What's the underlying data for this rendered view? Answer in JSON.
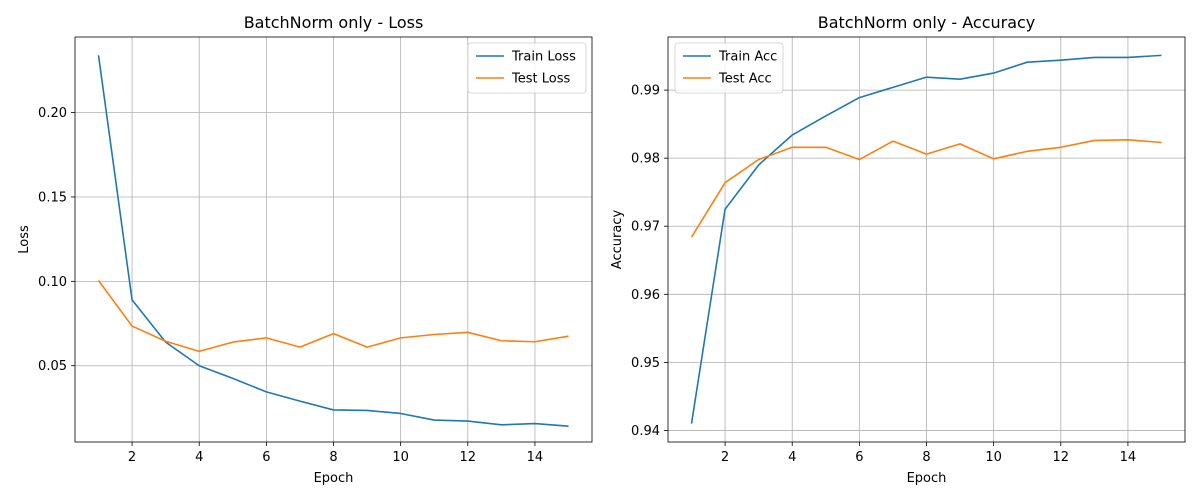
{
  "chart_data": [
    {
      "type": "line",
      "title": "BatchNorm only - Loss",
      "xlabel": "Epoch",
      "ylabel": "Loss",
      "xlim": [
        0.3,
        15.7
      ],
      "ylim": [
        0.0048,
        0.2448
      ],
      "xticks": [
        2,
        4,
        6,
        8,
        10,
        12,
        14
      ],
      "yticks": [
        0.05,
        0.1,
        0.15,
        0.2
      ],
      "ytick_labels": [
        "0.05",
        "0.10",
        "0.15",
        "0.20"
      ],
      "grid": true,
      "legend_position": "upper right",
      "x": [
        1,
        2,
        3,
        4,
        5,
        6,
        7,
        8,
        9,
        10,
        11,
        12,
        13,
        14,
        15
      ],
      "series": [
        {
          "name": "Train Loss",
          "color": "#1f77b4",
          "values": [
            0.234,
            0.089,
            0.064,
            0.05,
            0.0425,
            0.0345,
            0.029,
            0.0238,
            0.0235,
            0.0217,
            0.0178,
            0.0172,
            0.015,
            0.0157,
            0.0142
          ]
        },
        {
          "name": "Test Loss",
          "color": "#ff7f0e",
          "values": [
            0.1005,
            0.0735,
            0.0645,
            0.0585,
            0.064,
            0.0665,
            0.061,
            0.069,
            0.061,
            0.0665,
            0.0685,
            0.0698,
            0.0648,
            0.0642,
            0.0675
          ]
        }
      ]
    },
    {
      "type": "line",
      "title": "BatchNorm only - Accuracy",
      "xlabel": "Epoch",
      "ylabel": "Accuracy",
      "xlim": [
        0.3,
        15.7
      ],
      "ylim": [
        0.9383,
        0.9978
      ],
      "xticks": [
        2,
        4,
        6,
        8,
        10,
        12,
        14
      ],
      "yticks": [
        0.94,
        0.95,
        0.96,
        0.97,
        0.98,
        0.99
      ],
      "ytick_labels": [
        "0.94",
        "0.95",
        "0.96",
        "0.97",
        "0.98",
        "0.99"
      ],
      "grid": true,
      "legend_position": "upper left",
      "x": [
        1,
        2,
        3,
        4,
        5,
        6,
        7,
        8,
        9,
        10,
        11,
        12,
        13,
        14,
        15
      ],
      "series": [
        {
          "name": "Train Acc",
          "color": "#1f77b4",
          "values": [
            0.941,
            0.9725,
            0.979,
            0.9834,
            0.9862,
            0.9889,
            0.9904,
            0.9919,
            0.9916,
            0.9925,
            0.9941,
            0.9944,
            0.9948,
            0.9948,
            0.9951
          ]
        },
        {
          "name": "Test Acc",
          "color": "#ff7f0e",
          "values": [
            0.9684,
            0.9764,
            0.9798,
            0.9816,
            0.9816,
            0.9798,
            0.9825,
            0.9806,
            0.9821,
            0.9799,
            0.981,
            0.9816,
            0.9826,
            0.9827,
            0.9823
          ]
        }
      ]
    }
  ]
}
